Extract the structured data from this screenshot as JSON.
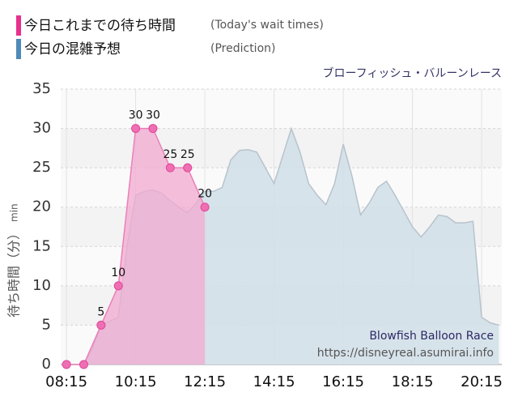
{
  "chart_data": {
    "type": "area",
    "subtitle": "ブローフィッシュ・バルーンレース",
    "y_label": "待ち時間（分）",
    "y_unit": "min",
    "annotations": [
      "Blowfish Balloon Race",
      "https://disneyreal.asumirai.info"
    ],
    "xlim": [
      "08:05",
      "20:50"
    ],
    "xticks": [
      "08:15",
      "10:15",
      "12:15",
      "14:15",
      "16:15",
      "18:15",
      "20:15"
    ],
    "ylim": [
      0,
      35
    ],
    "yticks": [
      0,
      5,
      10,
      15,
      20,
      25,
      30,
      35
    ],
    "grid": true,
    "series": [
      {
        "name": "今日の混雑予想",
        "note": "(Prediction)",
        "color": "#4f8ab8",
        "fill": "#d3e0e8",
        "line": "#b8c3cc",
        "markers": false,
        "x": [
          "08:15",
          "08:30",
          "08:45",
          "09:00",
          "09:15",
          "09:30",
          "09:45",
          "10:00",
          "10:15",
          "10:30",
          "10:45",
          "11:00",
          "11:15",
          "11:30",
          "11:45",
          "12:00",
          "12:15",
          "12:30",
          "12:45",
          "13:00",
          "13:15",
          "13:30",
          "13:45",
          "14:00",
          "14:15",
          "14:30",
          "14:45",
          "15:00",
          "15:15",
          "15:30",
          "15:45",
          "16:00",
          "16:15",
          "16:30",
          "16:45",
          "17:00",
          "17:15",
          "17:30",
          "17:45",
          "18:00",
          "18:15",
          "18:30",
          "18:45",
          "19:00",
          "19:15",
          "19:30",
          "19:45",
          "20:00",
          "20:15",
          "20:30",
          "20:45"
        ],
        "values": [
          0,
          0,
          0,
          2,
          5,
          5.5,
          6,
          15,
          21.5,
          22,
          22.2,
          21.8,
          20.8,
          20,
          19.3,
          20.5,
          22,
          22,
          22.5,
          26,
          27.2,
          27.3,
          27,
          25,
          23,
          26.5,
          30,
          27,
          23,
          21.5,
          20.3,
          23,
          28,
          24,
          19,
          20.5,
          22.5,
          23.3,
          21.5,
          19.5,
          17.5,
          16.2,
          17.5,
          19,
          18.8,
          18,
          18,
          18.2,
          6,
          5.3,
          5
        ]
      },
      {
        "name": "今日これまでの待ち時間",
        "note": "(Today's wait times)",
        "color": "#e8318f",
        "fill": "#f2a9d0",
        "line": "#ea7fb8",
        "markers": true,
        "x": [
          "08:15",
          "08:45",
          "09:15",
          "09:45",
          "10:15",
          "10:45",
          "11:15",
          "11:45",
          "12:15"
        ],
        "values": [
          0,
          0,
          5,
          10,
          30,
          30,
          25,
          25,
          20
        ]
      }
    ]
  }
}
